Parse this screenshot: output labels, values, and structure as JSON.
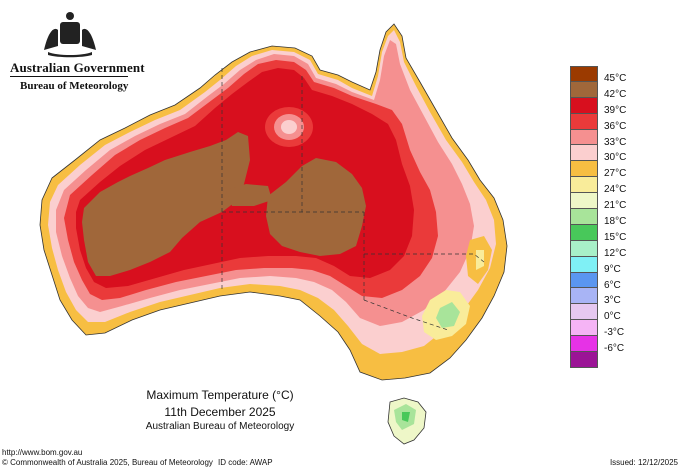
{
  "header": {
    "government": "Australian Government",
    "bureau": "Bureau of Meteorology"
  },
  "legend": [
    {
      "label": "45°C",
      "color": "#9b3a00"
    },
    {
      "label": "42°C",
      "color": "#a0673a"
    },
    {
      "label": "39°C",
      "color": "#d80f1e"
    },
    {
      "label": "36°C",
      "color": "#ea3a3a"
    },
    {
      "label": "33°C",
      "color": "#f59090"
    },
    {
      "label": "30°C",
      "color": "#fbcfcf"
    },
    {
      "label": "27°C",
      "color": "#f7be42"
    },
    {
      "label": "24°C",
      "color": "#f9ec9a"
    },
    {
      "label": "21°C",
      "color": "#eef7c8"
    },
    {
      "label": "18°C",
      "color": "#a8e49a"
    },
    {
      "label": "15°C",
      "color": "#48c85a"
    },
    {
      "label": "12°C",
      "color": "#a8f0c8"
    },
    {
      "label": "9°C",
      "color": "#7ff0f5"
    },
    {
      "label": "6°C",
      "color": "#5a96f0"
    },
    {
      "label": "3°C",
      "color": "#a8b4f5"
    },
    {
      "label": "0°C",
      "color": "#e6c8f0"
    },
    {
      "label": "-3°C",
      "color": "#f5b4f5"
    },
    {
      "label": "-6°C",
      "color": "#e632e6"
    },
    {
      "label": "",
      "color": "#9b1496"
    }
  ],
  "map": {
    "title": "Maximum Temperature (°C)",
    "date": "11th December 2025",
    "source": "Australian Bureau of Meteorology"
  },
  "footer": {
    "url": "http://www.bom.gov.au",
    "copyright": "© Commonwealth of Australia 2025, Bureau of Meteorology",
    "id_code": "ID code: AWAP",
    "issued": "Issued: 12/12/2025"
  }
}
